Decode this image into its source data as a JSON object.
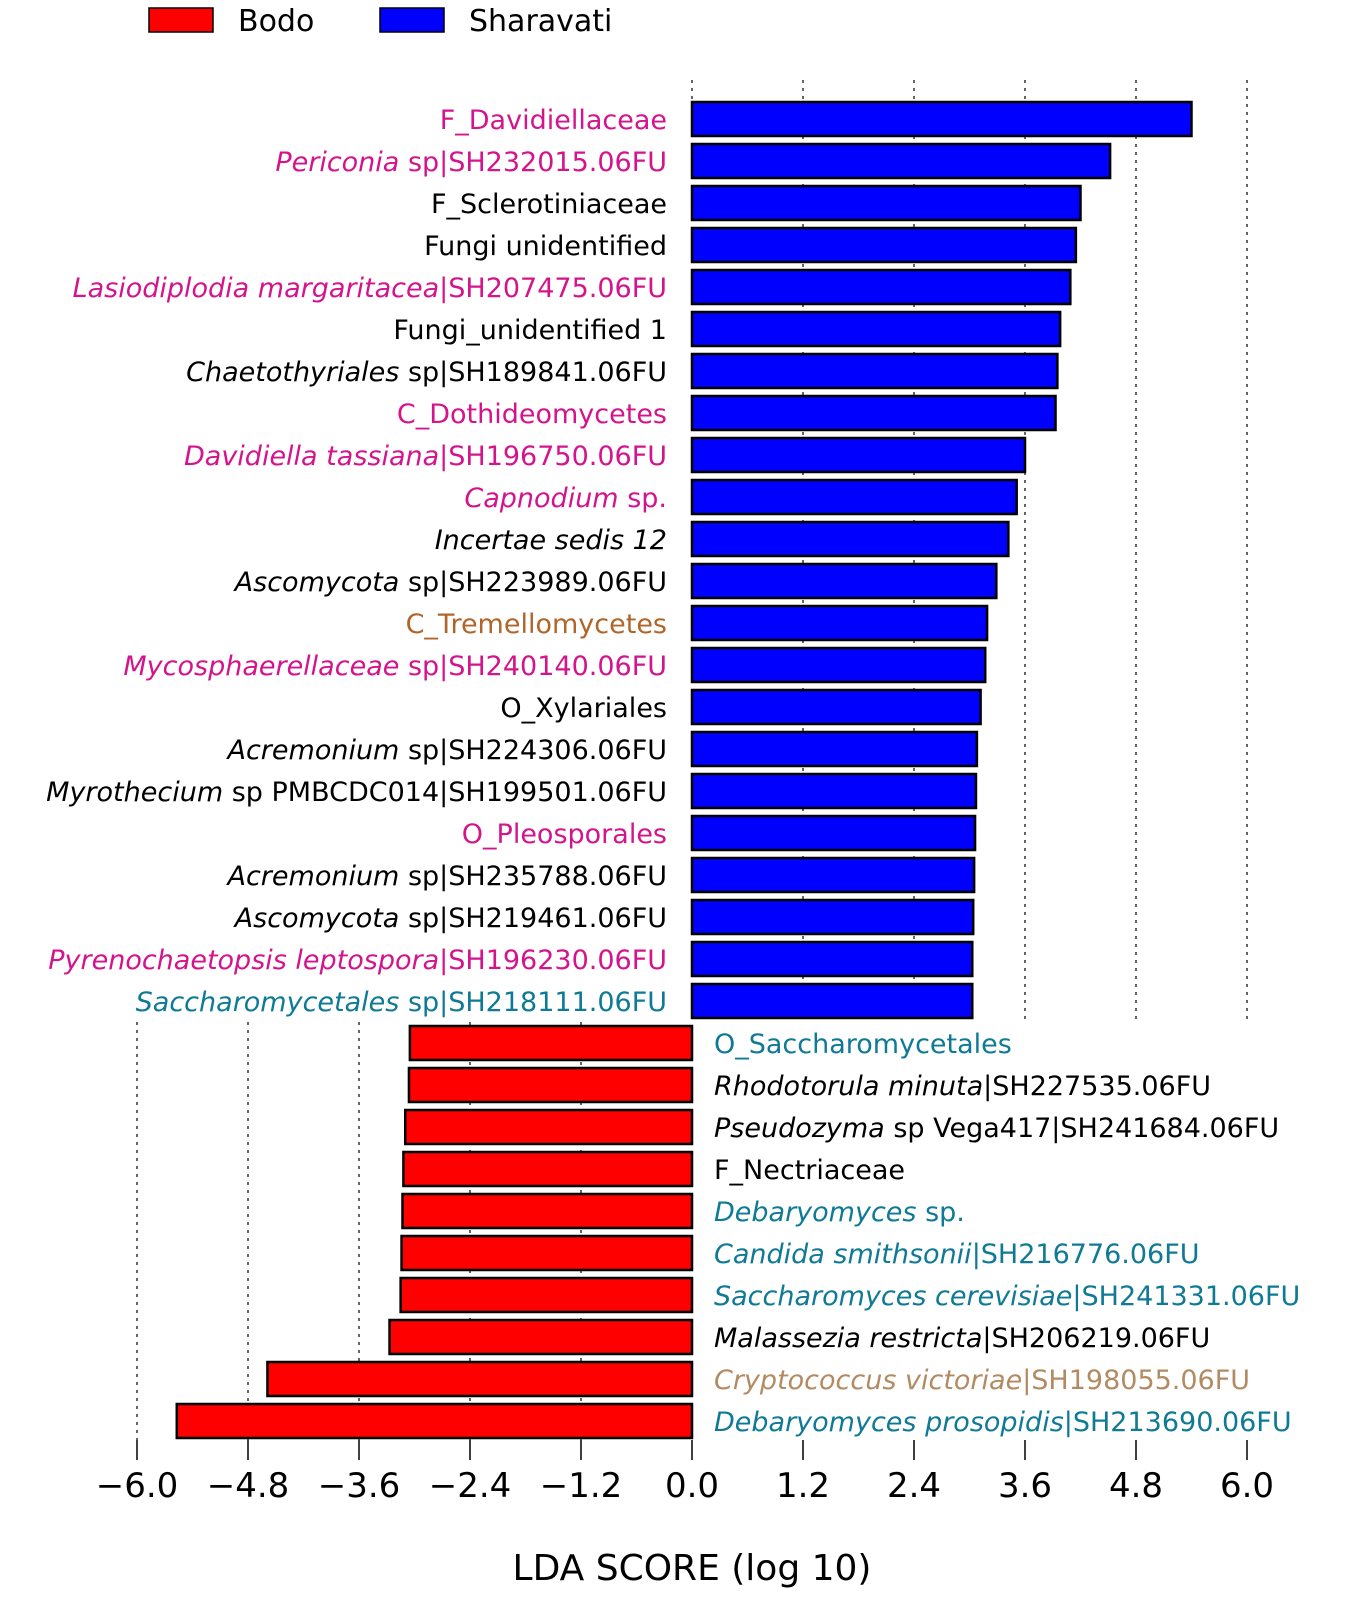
{
  "chart_data": {
    "type": "bar",
    "orientation": "horizontal",
    "xlabel": "LDA SCORE (log 10)",
    "xlim": [
      -6.0,
      6.0
    ],
    "xticks": [
      -6.0,
      -4.8,
      -3.6,
      -2.4,
      -1.2,
      0.0,
      1.2,
      2.4,
      3.6,
      4.8,
      6.0
    ],
    "xtick_labels": [
      "−6.0",
      "−4.8",
      "−3.6",
      "−2.4",
      "−1.2",
      "0.0",
      "1.2",
      "2.4",
      "3.6",
      "4.8",
      "6.0"
    ],
    "grid": "vertical dotted",
    "legend": {
      "placement": "top-left",
      "entries": [
        {
          "name": "Bodo",
          "color": "#ff0000"
        },
        {
          "name": "Sharavati",
          "color": "#0000ff"
        }
      ]
    },
    "label_colors": {
      "magenta": "#d4148c",
      "black": "#000000",
      "teal": "#0f7a95",
      "brown": "#b0662a",
      "tan": "#b38b63"
    },
    "bars": [
      {
        "group": "Sharavati",
        "value": 5.4,
        "color_key": "magenta",
        "label": [
          {
            "t": "F_Davidiellaceae",
            "i": false
          }
        ]
      },
      {
        "group": "Sharavati",
        "value": 4.52,
        "color_key": "magenta",
        "label": [
          {
            "t": "Periconia",
            "i": true
          },
          {
            "t": " sp|SH232015.06FU",
            "i": false
          }
        ]
      },
      {
        "group": "Sharavati",
        "value": 4.2,
        "color_key": "black",
        "label": [
          {
            "t": "F_Sclerotiniaceae",
            "i": false
          }
        ]
      },
      {
        "group": "Sharavati",
        "value": 4.15,
        "color_key": "black",
        "label": [
          {
            "t": "Fungi unidentified",
            "i": false
          }
        ]
      },
      {
        "group": "Sharavati",
        "value": 4.09,
        "color_key": "magenta",
        "label": [
          {
            "t": "Lasiodiplodia margaritacea",
            "i": true
          },
          {
            "t": "|SH207475.06FU",
            "i": false
          }
        ]
      },
      {
        "group": "Sharavati",
        "value": 3.98,
        "color_key": "black",
        "label": [
          {
            "t": "Fungi_unidentified 1",
            "i": false
          }
        ]
      },
      {
        "group": "Sharavati",
        "value": 3.95,
        "color_key": "black",
        "label": [
          {
            "t": "Chaetothyriales",
            "i": true
          },
          {
            "t": " sp|SH189841.06FU",
            "i": false
          }
        ]
      },
      {
        "group": "Sharavati",
        "value": 3.93,
        "color_key": "magenta",
        "label": [
          {
            "t": "C_Dothideomycetes",
            "i": false
          }
        ]
      },
      {
        "group": "Sharavati",
        "value": 3.6,
        "color_key": "magenta",
        "label": [
          {
            "t": "Davidiella tassiana",
            "i": true
          },
          {
            "t": "|SH196750.06FU",
            "i": false
          }
        ]
      },
      {
        "group": "Sharavati",
        "value": 3.51,
        "color_key": "magenta",
        "label": [
          {
            "t": "Capnodium",
            "i": true
          },
          {
            "t": " sp.",
            "i": false
          }
        ]
      },
      {
        "group": "Sharavati",
        "value": 3.42,
        "color_key": "black",
        "label": [
          {
            "t": "Incertae sedis 12",
            "i": true
          }
        ]
      },
      {
        "group": "Sharavati",
        "value": 3.29,
        "color_key": "black",
        "label": [
          {
            "t": "Ascomycota",
            "i": true
          },
          {
            "t": " sp|SH223989.06FU",
            "i": false
          }
        ]
      },
      {
        "group": "Sharavati",
        "value": 3.19,
        "color_key": "brown",
        "label": [
          {
            "t": "C_Tremellomycetes",
            "i": false
          }
        ]
      },
      {
        "group": "Sharavati",
        "value": 3.17,
        "color_key": "magenta",
        "label": [
          {
            "t": "Mycosphaerellaceae",
            "i": true
          },
          {
            "t": " sp|SH240140.06FU",
            "i": false
          }
        ]
      },
      {
        "group": "Sharavati",
        "value": 3.12,
        "color_key": "black",
        "label": [
          {
            "t": "O_Xylariales",
            "i": false
          }
        ]
      },
      {
        "group": "Sharavati",
        "value": 3.08,
        "color_key": "black",
        "label": [
          {
            "t": "Acremonium",
            "i": true
          },
          {
            "t": " sp|SH224306.06FU",
            "i": false
          }
        ]
      },
      {
        "group": "Sharavati",
        "value": 3.07,
        "color_key": "black",
        "label": [
          {
            "t": "Myrothecium",
            "i": true
          },
          {
            "t": " sp PMBCDC014|SH199501.06FU",
            "i": false
          }
        ]
      },
      {
        "group": "Sharavati",
        "value": 3.06,
        "color_key": "magenta",
        "label": [
          {
            "t": "O_Pleosporales",
            "i": false
          }
        ]
      },
      {
        "group": "Sharavati",
        "value": 3.05,
        "color_key": "black",
        "label": [
          {
            "t": "Acremonium",
            "i": true
          },
          {
            "t": " sp|SH235788.06FU",
            "i": false
          }
        ]
      },
      {
        "group": "Sharavati",
        "value": 3.04,
        "color_key": "black",
        "label": [
          {
            "t": "Ascomycota",
            "i": true
          },
          {
            "t": " sp|SH219461.06FU",
            "i": false
          }
        ]
      },
      {
        "group": "Sharavati",
        "value": 3.03,
        "color_key": "magenta",
        "label": [
          {
            "t": "Pyrenochaetopsis leptospora",
            "i": true
          },
          {
            "t": "|SH196230.06FU",
            "i": false
          }
        ]
      },
      {
        "group": "Sharavati",
        "value": 3.03,
        "color_key": "teal",
        "label": [
          {
            "t": "Saccharomycetales",
            "i": true
          },
          {
            "t": " sp|SH218111.06FU",
            "i": false
          }
        ]
      },
      {
        "group": "Bodo",
        "value": -3.05,
        "color_key": "teal",
        "label": [
          {
            "t": "O_Saccharomycetales",
            "i": false
          }
        ]
      },
      {
        "group": "Bodo",
        "value": -3.06,
        "color_key": "black",
        "label": [
          {
            "t": "Rhodotorula minuta",
            "i": true
          },
          {
            "t": "|SH227535.06FU",
            "i": false
          }
        ]
      },
      {
        "group": "Bodo",
        "value": -3.1,
        "color_key": "black",
        "label": [
          {
            "t": "Pseudozyma",
            "i": true
          },
          {
            "t": " sp Vega417|SH241684.06FU",
            "i": false
          }
        ]
      },
      {
        "group": "Bodo",
        "value": -3.12,
        "color_key": "black",
        "label": [
          {
            "t": "F_Nectriaceae",
            "i": false
          }
        ]
      },
      {
        "group": "Bodo",
        "value": -3.13,
        "color_key": "teal",
        "label": [
          {
            "t": "Debaryomyces",
            "i": true
          },
          {
            "t": " sp.",
            "i": false
          }
        ]
      },
      {
        "group": "Bodo",
        "value": -3.14,
        "color_key": "teal",
        "label": [
          {
            "t": "Candida smithsonii",
            "i": true
          },
          {
            "t": "|SH216776.06FU",
            "i": false
          }
        ]
      },
      {
        "group": "Bodo",
        "value": -3.15,
        "color_key": "teal",
        "label": [
          {
            "t": "Saccharomyces cerevisiae",
            "i": true
          },
          {
            "t": "|SH241331.06FU",
            "i": false
          }
        ]
      },
      {
        "group": "Bodo",
        "value": -3.27,
        "color_key": "black",
        "label": [
          {
            "t": "Malassezia restricta",
            "i": true
          },
          {
            "t": "|SH206219.06FU",
            "i": false
          }
        ]
      },
      {
        "group": "Bodo",
        "value": -4.59,
        "color_key": "tan",
        "label": [
          {
            "t": "Cryptococcus victoriae",
            "i": true
          },
          {
            "t": "|SH198055.06FU",
            "i": false
          }
        ]
      },
      {
        "group": "Bodo",
        "value": -5.57,
        "color_key": "teal",
        "label": [
          {
            "t": "Debaryomyces prosopidis",
            "i": true
          },
          {
            "t": "|SH213690.06FU",
            "i": false
          }
        ]
      }
    ]
  }
}
